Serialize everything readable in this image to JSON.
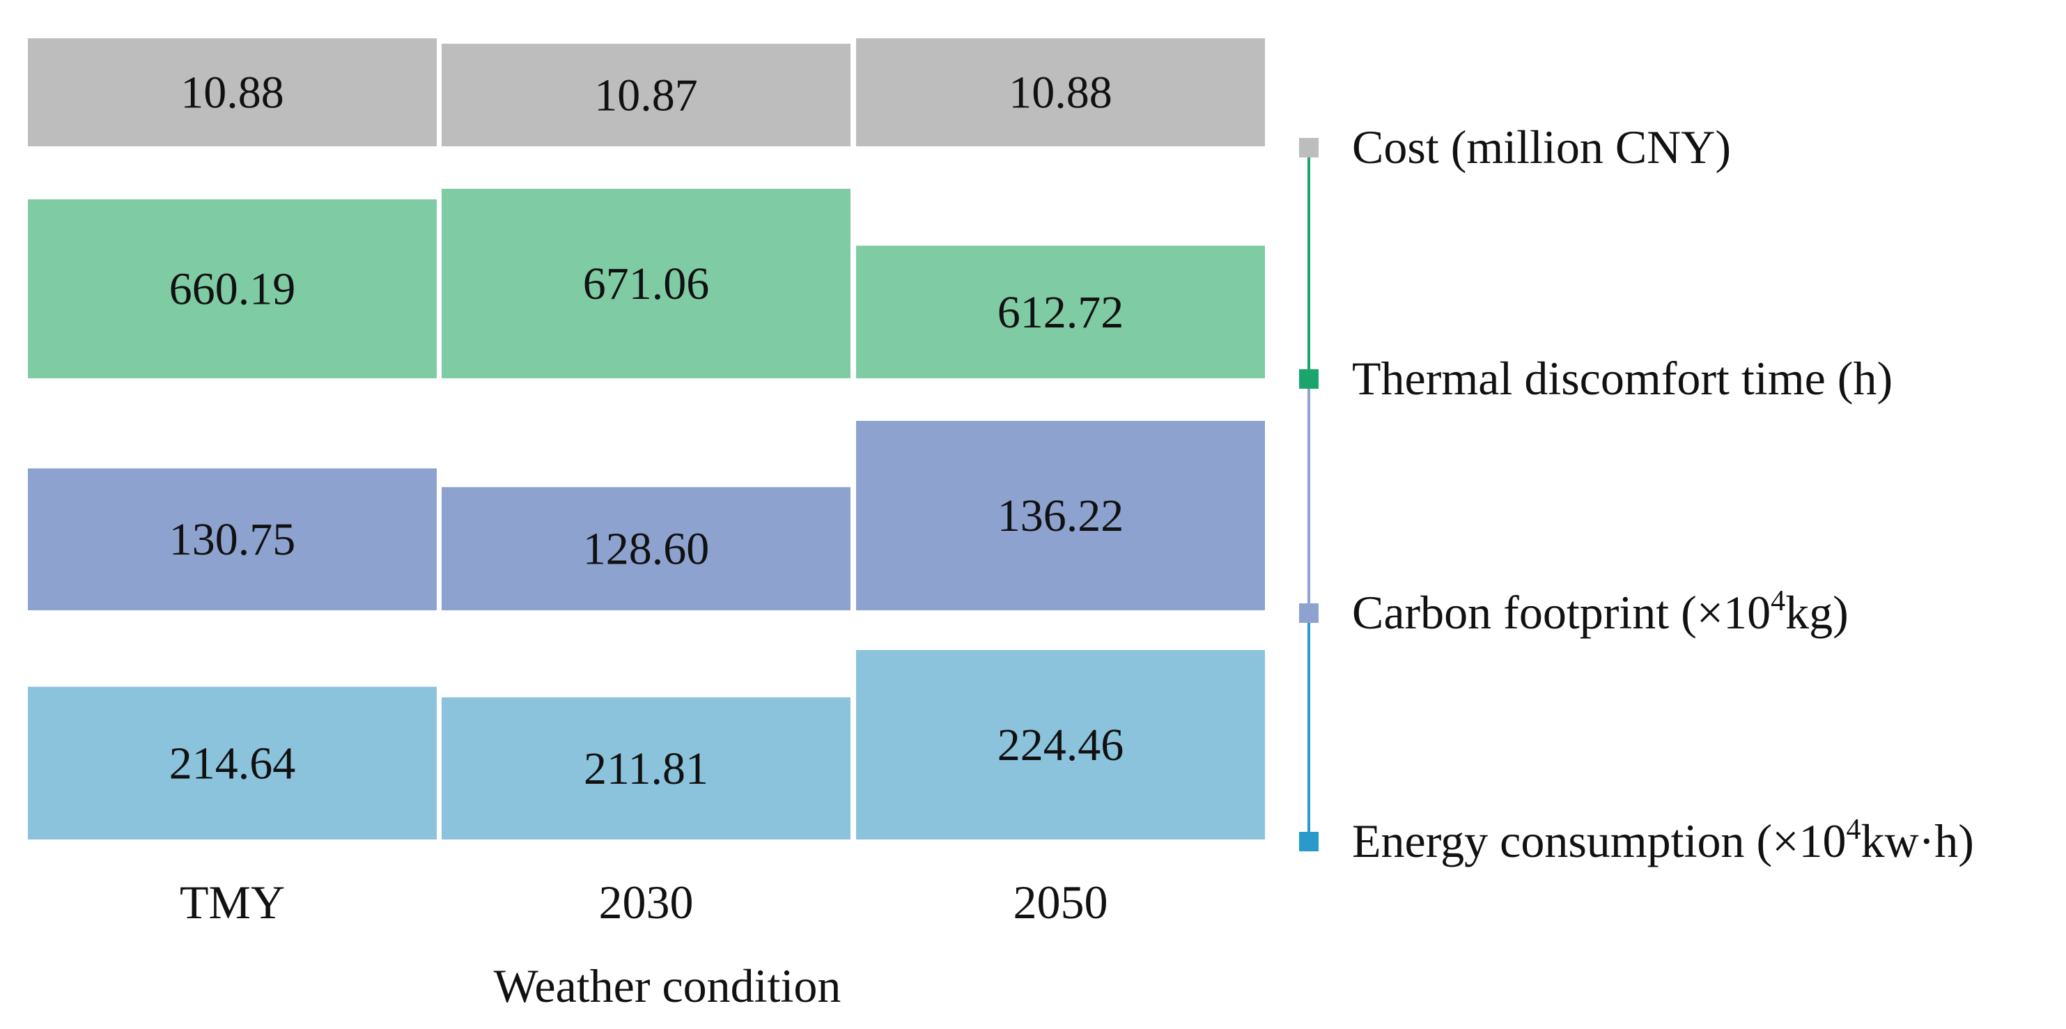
{
  "chart_data": {
    "type": "bar",
    "title": "",
    "xlabel": "Weather condition",
    "categories": [
      "TMY",
      "2030",
      "2050"
    ],
    "series": [
      {
        "key": "cost",
        "name": "Cost (million CNY)",
        "color": "#BDBDBD",
        "marker_color": "#BDBDBD",
        "values": [
          10.88,
          10.87,
          10.88
        ],
        "labels": [
          "10.88",
          "10.87",
          "10.88"
        ]
      },
      {
        "key": "thermal",
        "name": "Thermal discomfort time (h)",
        "color": "#7FCBA4",
        "marker_color": "#1AA56A",
        "values": [
          660.19,
          671.06,
          612.72
        ],
        "labels": [
          "660.19",
          "671.06",
          "612.72"
        ]
      },
      {
        "key": "carbon",
        "name": "Carbon footprint (×10⁴kg)",
        "name_parts": [
          "Carbon footprint (×10",
          "4",
          "kg)"
        ],
        "color": "#8DA2CF",
        "marker_color": "#8DA2CF",
        "values": [
          130.75,
          128.6,
          136.22
        ],
        "labels": [
          "130.75",
          "128.60",
          "136.22"
        ]
      },
      {
        "key": "energy",
        "name": "Energy consumption (×10⁴kw·h)",
        "name_parts": [
          "Energy consumption (×10",
          "4",
          "kw·h)"
        ],
        "color": "#8BC3DD",
        "marker_color": "#2A9ACB",
        "values": [
          214.64,
          211.81,
          224.46
        ],
        "labels": [
          "214.64",
          "211.81",
          "224.46"
        ]
      }
    ],
    "legend_position": "right",
    "legend_connector_colors": [
      "#BDBDBD",
      "#1AA56A",
      "#8DA2CF",
      "#2A9ACB"
    ],
    "grid": false
  }
}
